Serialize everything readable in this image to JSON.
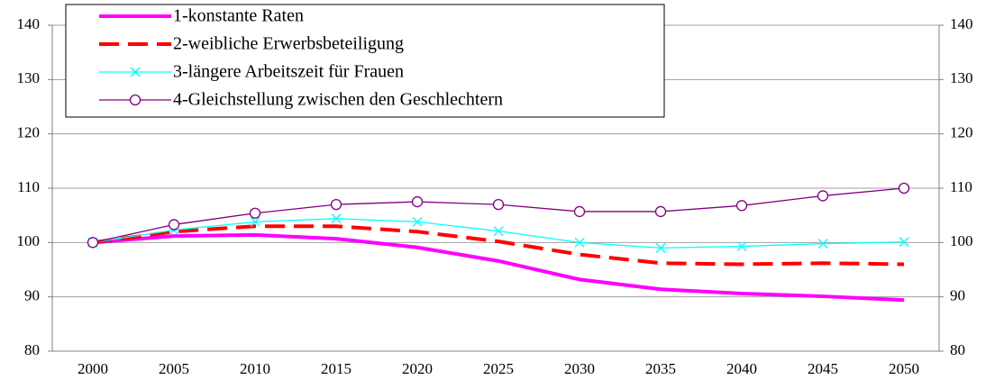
{
  "chart_data": {
    "type": "line",
    "categories": [
      "2000",
      "2005",
      "2010",
      "2015",
      "2020",
      "2025",
      "2030",
      "2035",
      "2040",
      "2045",
      "2050"
    ],
    "series": [
      {
        "name": "1-konstante Raten",
        "color": "#ff00ff",
        "width": 4,
        "dash": false,
        "marker": null,
        "values": [
          100,
          101.2,
          101.4,
          100.7,
          99.1,
          96.6,
          93.2,
          91.4,
          90.6,
          90.1,
          89.4
        ]
      },
      {
        "name": "2-weibliche Erwerbsbeteiligung",
        "color": "#ff0000",
        "width": 4,
        "dash": true,
        "marker": null,
        "values": [
          100,
          102,
          103,
          103,
          102,
          100.2,
          97.8,
          96.2,
          96,
          96.2,
          96
        ]
      },
      {
        "name": "3-längere Arbeitszeit für Frauen",
        "color": "#00ffff",
        "width": 1.3,
        "dash": false,
        "marker": "x",
        "values": [
          100,
          102.3,
          103.8,
          104.4,
          103.8,
          102.1,
          100,
          99,
          99.3,
          99.8,
          100.1
        ]
      },
      {
        "name": "4-Gleichstellung zwischen den Geschlechtern",
        "color": "#800080",
        "width": 1.3,
        "dash": false,
        "marker": "circle",
        "values": [
          100,
          103.3,
          105.4,
          107,
          107.5,
          107,
          105.7,
          105.7,
          106.8,
          108.6,
          110
        ]
      }
    ],
    "ylim": [
      80,
      140
    ],
    "yticks": [
      80,
      90,
      100,
      110,
      120,
      130,
      140
    ],
    "y2lim": [
      80,
      140
    ],
    "y2ticks": [
      80,
      90,
      100,
      110,
      120,
      130,
      140
    ],
    "grid": true,
    "legend": "top-left"
  }
}
